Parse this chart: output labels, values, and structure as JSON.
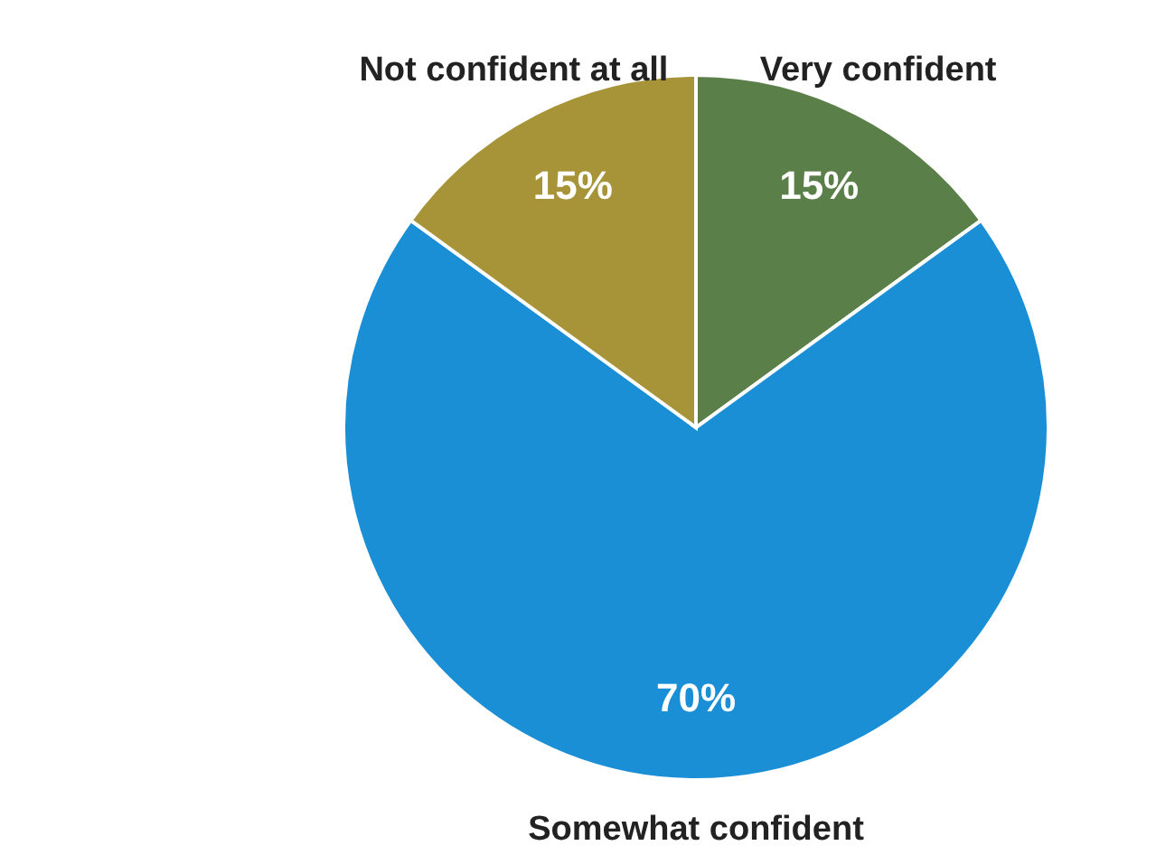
{
  "chart_data": {
    "type": "pie",
    "categories": [
      "Very confident",
      "Somewhat confident",
      "Not confident at all"
    ],
    "values": [
      15,
      70,
      15
    ],
    "colors": [
      "#5a7f48",
      "#1a8fd6",
      "#a89438"
    ],
    "value_labels": [
      "15%",
      "70%",
      "15%"
    ]
  }
}
